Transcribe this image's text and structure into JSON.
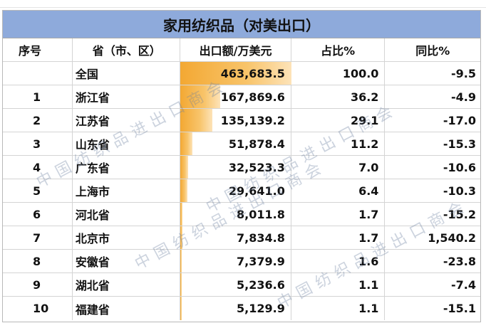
{
  "title": "家用纺织品（对美出口）",
  "headers": [
    "序号",
    "省（市、区）",
    "出口额/万美元",
    "占比%",
    "同比%"
  ],
  "total": {
    "index": "",
    "region": "全国",
    "value": "463,683.5",
    "share": "100.0",
    "yoy": "-9.5",
    "bar_fraction": 1.0
  },
  "rows": [
    {
      "index": "1",
      "region": "浙江省",
      "value": "167,869.6",
      "share": "36.2",
      "yoy": "-4.9",
      "bar_fraction": 0.362
    },
    {
      "index": "2",
      "region": "江苏省",
      "value": "135,139.2",
      "share": "29.1",
      "yoy": "-17.0",
      "bar_fraction": 0.291
    },
    {
      "index": "3",
      "region": "山东省",
      "value": "51,878.4",
      "share": "11.2",
      "yoy": "-15.3",
      "bar_fraction": 0.112
    },
    {
      "index": "4",
      "region": "广东省",
      "value": "32,523.3",
      "share": "7.0",
      "yoy": "-10.6",
      "bar_fraction": 0.07
    },
    {
      "index": "5",
      "region": "上海市",
      "value": "29,641.0",
      "share": "6.4",
      "yoy": "-10.3",
      "bar_fraction": 0.064
    },
    {
      "index": "6",
      "region": "河北省",
      "value": "8,011.8",
      "share": "1.7",
      "yoy": "-15.2",
      "bar_fraction": 0.017
    },
    {
      "index": "7",
      "region": "北京市",
      "value": "7,834.8",
      "share": "1.7",
      "yoy": "1,540.2",
      "bar_fraction": 0.017
    },
    {
      "index": "8",
      "region": "安徽省",
      "value": "7,379.9",
      "share": "1.6",
      "yoy": "-23.8",
      "bar_fraction": 0.016
    },
    {
      "index": "9",
      "region": "湖北省",
      "value": "5,236.6",
      "share": "1.1",
      "yoy": "-7.4",
      "bar_fraction": 0.011
    },
    {
      "index": "10",
      "region": "福建省",
      "value": "5,129.9",
      "share": "1.1",
      "yoy": "-15.1",
      "bar_fraction": 0.011
    }
  ],
  "watermark": "中国纺织品进出口商会",
  "colors": {
    "title_bg": "#8eaadb",
    "bar": "#f3a833"
  }
}
